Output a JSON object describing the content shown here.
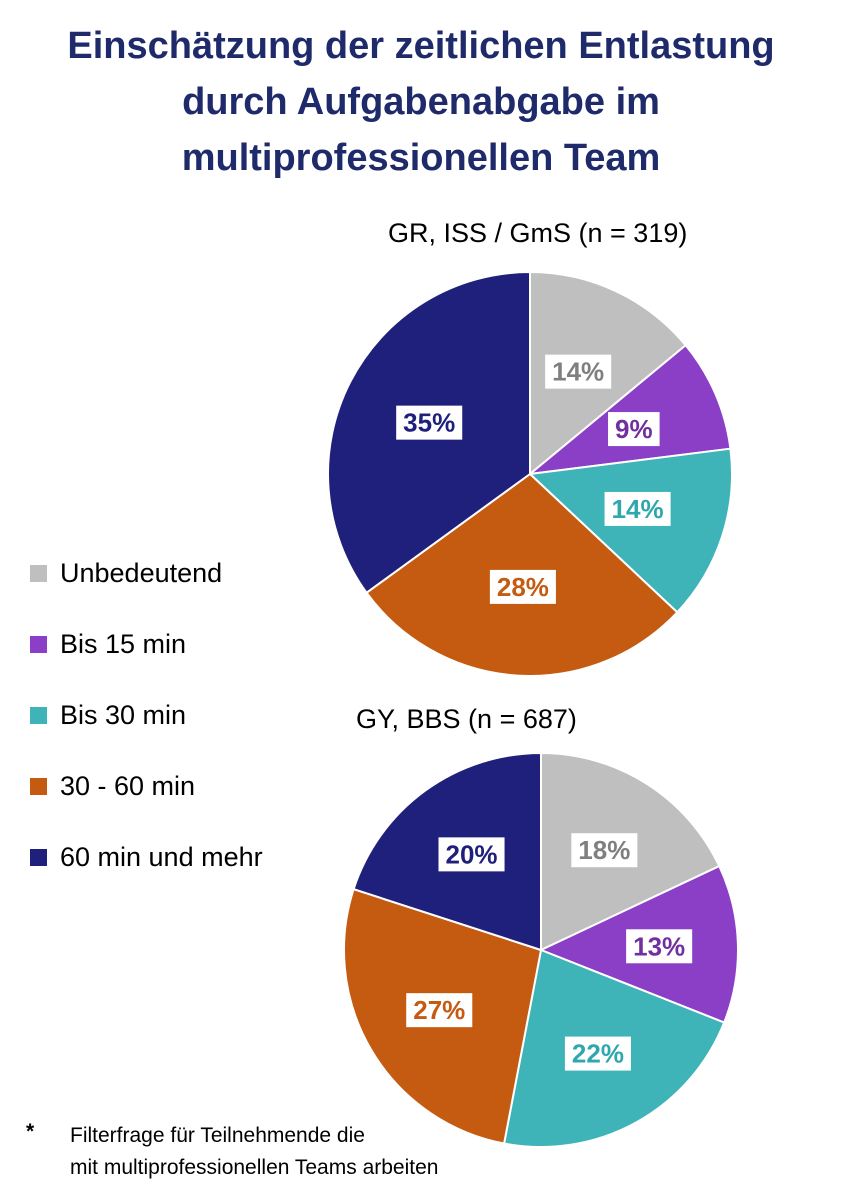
{
  "title": {
    "line1": "Einschätzung der zeitlichen Entlastung",
    "line2": "durch Aufgabenabgabe im",
    "line3": "multiprofessionellen Team"
  },
  "legend": [
    {
      "label": "Unbedeutend",
      "color": "#bfbfbf"
    },
    {
      "label": "Bis 15 min",
      "color": "#8b3fc7"
    },
    {
      "label": "Bis 30 min",
      "color": "#3eb4b8"
    },
    {
      "label": "30 - 60 min",
      "color": "#c55a11"
    },
    {
      "label": "60 min und mehr",
      "color": "#1f207c"
    }
  ],
  "footnote": {
    "marker": "*",
    "line1": "Filterfrage für Teilnehmende die",
    "line2": "mit multiprofessionellen Teams arbeiten"
  },
  "chart_data": [
    {
      "type": "pie",
      "title": "GR, ISS / GmS (n = 319)",
      "categories": [
        "Unbedeutend",
        "Bis 15 min",
        "Bis 30 min",
        "30 - 60 min",
        "60 min und mehr"
      ],
      "values": [
        14,
        9,
        14,
        28,
        35
      ],
      "labels": [
        "14%",
        "9%",
        "14%",
        "28%",
        "35%"
      ],
      "colors": [
        "#bfbfbf",
        "#8b3fc7",
        "#3eb4b8",
        "#c55a11",
        "#1f207c"
      ],
      "label_colors": [
        "#7f7f7f",
        "#7030a0",
        "#2ea7ad",
        "#c55a11",
        "#1f207c"
      ]
    },
    {
      "type": "pie",
      "title": "GY, BBS (n = 687)",
      "categories": [
        "Unbedeutend",
        "Bis 15 min",
        "Bis 30 min",
        "30 - 60 min",
        "60 min und mehr"
      ],
      "values": [
        18,
        13,
        22,
        27,
        20
      ],
      "labels": [
        "18%",
        "13%",
        "22%",
        "27%",
        "20%"
      ],
      "colors": [
        "#bfbfbf",
        "#8b3fc7",
        "#3eb4b8",
        "#c55a11",
        "#1f207c"
      ],
      "label_colors": [
        "#7f7f7f",
        "#7030a0",
        "#2ea7ad",
        "#c55a11",
        "#1f207c"
      ]
    }
  ]
}
